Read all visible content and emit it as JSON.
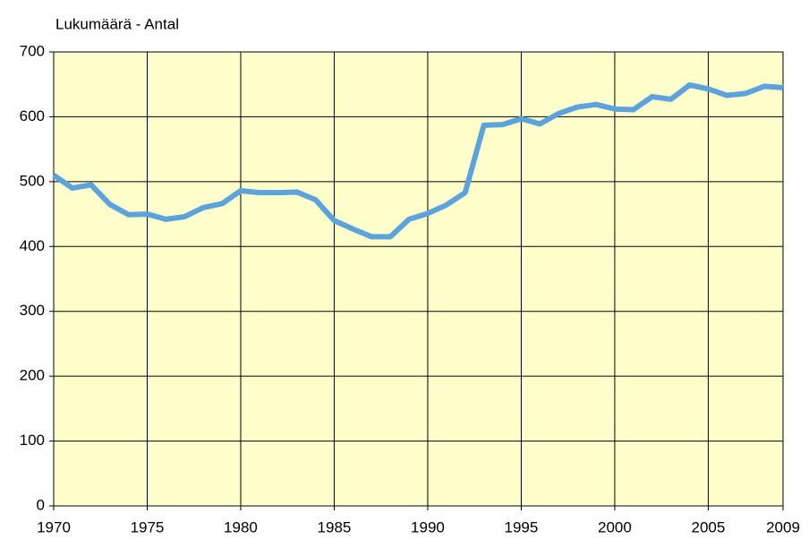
{
  "chart_data": {
    "type": "line",
    "y_axis_label": "Lukumäärä - Antal",
    "x": [
      1970,
      1971,
      1972,
      1973,
      1974,
      1975,
      1976,
      1977,
      1978,
      1979,
      1980,
      1981,
      1982,
      1983,
      1984,
      1985,
      1986,
      1987,
      1988,
      1989,
      1990,
      1991,
      1992,
      1993,
      1994,
      1995,
      1996,
      1997,
      1998,
      1999,
      2000,
      2001,
      2002,
      2003,
      2004,
      2005,
      2006,
      2007,
      2008,
      2009
    ],
    "values": [
      510,
      490,
      495,
      465,
      449,
      450,
      442,
      446,
      460,
      466,
      486,
      483,
      483,
      484,
      472,
      440,
      427,
      415,
      415,
      442,
      451,
      464,
      483,
      587,
      588,
      597,
      589,
      605,
      615,
      619,
      612,
      611,
      631,
      627,
      649,
      643,
      633,
      636,
      647,
      645
    ],
    "color": "#5ba3dc",
    "xlim": [
      1970,
      2009
    ],
    "xticks": [
      1970,
      1975,
      1980,
      1985,
      1990,
      1995,
      2000,
      2005,
      2009
    ],
    "ylim": [
      0,
      700
    ],
    "yticks": [
      0,
      100,
      200,
      300,
      400,
      500,
      600,
      700
    ],
    "grid": true
  }
}
